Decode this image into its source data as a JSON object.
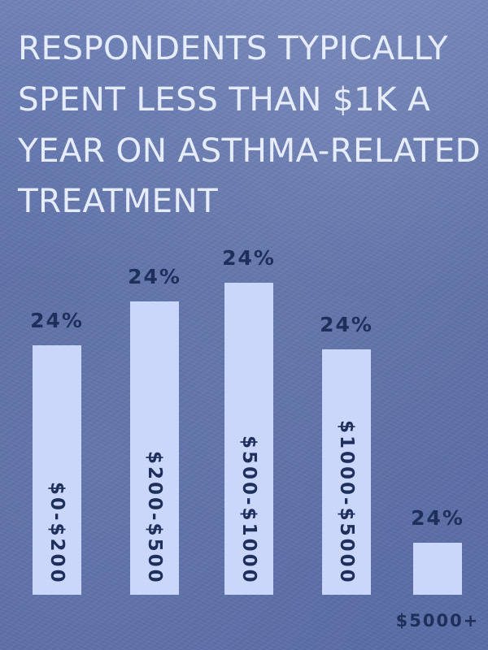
{
  "chart_data": {
    "type": "bar",
    "title": "RESPONDENTS TYPICALLY SPENT LESS THAN $1K A YEAR ON ASTHMA-RELATED TREATMENT",
    "categories": [
      "$0-$200",
      "$200-$500",
      "$500-$1000",
      "$1000-$5000",
      "$5000+"
    ],
    "values": [
      24,
      24,
      24,
      24,
      24
    ],
    "value_labels": [
      "24%",
      "24%",
      "24%",
      "24%",
      "24%"
    ],
    "xlabel": "",
    "ylabel": "",
    "grid": false,
    "colors": {
      "bar": "#cbd6fb",
      "label": "#1d2f5a",
      "title": "#e7ecfb"
    }
  }
}
